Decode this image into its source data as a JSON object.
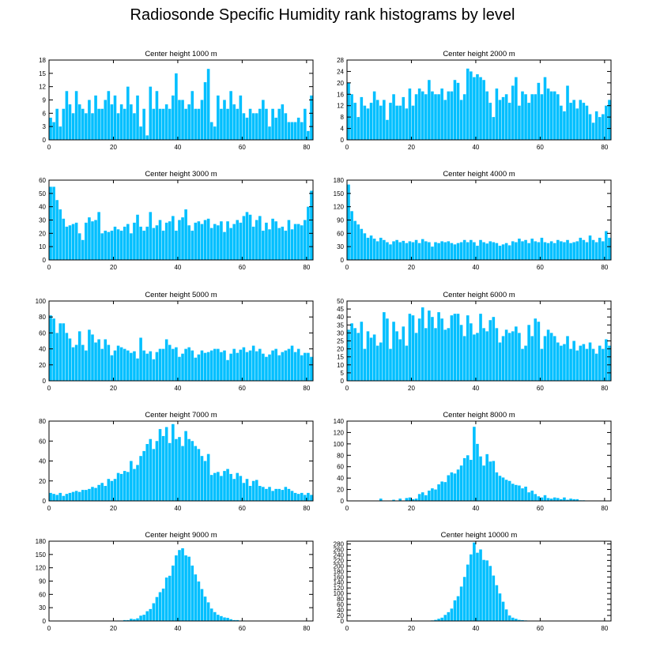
{
  "title": "Radiosonde Specific Humidity rank histograms by level",
  "bar_color": "#00bfff",
  "chart_data": [
    {
      "type": "bar",
      "title": "Center height 1000 m",
      "xlim": [
        0,
        82
      ],
      "xticks": [
        0,
        20,
        40,
        60,
        80
      ],
      "ylim": [
        0,
        18
      ],
      "yticks": [
        0,
        3,
        6,
        9,
        12,
        15,
        18
      ],
      "values": [
        5,
        4,
        7,
        3,
        7,
        11,
        8,
        6,
        11,
        8,
        7,
        6,
        9,
        6,
        10,
        7,
        7,
        9,
        11,
        8,
        10,
        6,
        8,
        7,
        12,
        8,
        6,
        10,
        3,
        7,
        1,
        12,
        7,
        11,
        7,
        7,
        8,
        7,
        10,
        15,
        9,
        9,
        7,
        8,
        11,
        7,
        7,
        9,
        13,
        16,
        4,
        3,
        10,
        7,
        9,
        7,
        11,
        8,
        7,
        10,
        6,
        5,
        7,
        6,
        6,
        7,
        9,
        7,
        3,
        7,
        5,
        7,
        8,
        6,
        4,
        4,
        4,
        5,
        4,
        7,
        2,
        10
      ]
    },
    {
      "type": "bar",
      "title": "Center height 2000 m",
      "xlim": [
        0,
        82
      ],
      "xticks": [
        0,
        20,
        40,
        60,
        80
      ],
      "ylim": [
        0,
        28
      ],
      "yticks": [
        0,
        4,
        8,
        12,
        16,
        20,
        24,
        28
      ],
      "values": [
        20,
        16,
        13,
        8,
        15,
        12,
        11,
        13,
        17,
        14,
        12,
        14,
        7,
        13,
        16,
        12,
        12,
        15,
        11,
        18,
        12,
        16,
        18,
        17,
        16,
        21,
        17,
        16,
        16,
        18,
        14,
        17,
        17,
        21,
        20,
        14,
        16,
        25,
        24,
        22,
        23,
        22,
        21,
        17,
        13,
        8,
        18,
        14,
        15,
        16,
        13,
        19,
        22,
        12,
        17,
        16,
        13,
        16,
        16,
        20,
        16,
        22,
        18,
        17,
        17,
        16,
        12,
        10,
        19,
        13,
        14,
        11,
        14,
        13,
        12,
        9,
        6,
        10,
        8,
        9,
        12,
        14
      ]
    },
    {
      "type": "bar",
      "title": "Center height 3000 m",
      "xlim": [
        0,
        82
      ],
      "xticks": [
        0,
        20,
        40,
        60,
        80
      ],
      "ylim": [
        0,
        60
      ],
      "yticks": [
        0,
        10,
        20,
        30,
        40,
        50,
        60
      ],
      "values": [
        55,
        55,
        45,
        38,
        31,
        25,
        26,
        27,
        28,
        20,
        15,
        28,
        32,
        29,
        30,
        36,
        20,
        22,
        21,
        22,
        25,
        23,
        22,
        25,
        27,
        20,
        28,
        34,
        25,
        22,
        25,
        36,
        24,
        26,
        30,
        22,
        28,
        29,
        33,
        22,
        30,
        32,
        38,
        26,
        22,
        28,
        29,
        27,
        30,
        31,
        24,
        27,
        26,
        29,
        21,
        29,
        24,
        27,
        30,
        28,
        33,
        36,
        34,
        25,
        30,
        33,
        22,
        28,
        23,
        31,
        29,
        24,
        25,
        22,
        30,
        23,
        27,
        27,
        26,
        30,
        40,
        52
      ]
    },
    {
      "type": "bar",
      "title": "Center height 4000 m",
      "xlim": [
        0,
        82
      ],
      "xticks": [
        0,
        20,
        40,
        60,
        80
      ],
      "ylim": [
        0,
        180
      ],
      "yticks": [
        0,
        30,
        60,
        90,
        120,
        150,
        180
      ],
      "values": [
        170,
        110,
        88,
        80,
        70,
        60,
        50,
        55,
        48,
        42,
        50,
        45,
        40,
        35,
        42,
        45,
        40,
        43,
        38,
        42,
        40,
        45,
        38,
        47,
        42,
        40,
        30,
        40,
        38,
        42,
        40,
        42,
        38,
        35,
        38,
        40,
        45,
        40,
        45,
        40,
        32,
        45,
        40,
        37,
        42,
        40,
        38,
        32,
        35,
        38,
        33,
        42,
        40,
        48,
        42,
        45,
        38,
        48,
        42,
        40,
        50,
        40,
        38,
        42,
        38,
        45,
        42,
        40,
        45,
        38,
        40,
        42,
        50,
        45,
        40,
        55,
        45,
        40,
        50,
        42,
        65,
        50
      ]
    },
    {
      "type": "bar",
      "title": "Center height 5000 m",
      "xlim": [
        0,
        82
      ],
      "xticks": [
        0,
        20,
        40,
        60,
        80
      ],
      "ylim": [
        0,
        100
      ],
      "yticks": [
        0,
        20,
        40,
        60,
        80,
        100
      ],
      "values": [
        82,
        78,
        60,
        72,
        72,
        60,
        53,
        42,
        45,
        62,
        45,
        38,
        64,
        58,
        48,
        52,
        40,
        52,
        45,
        32,
        38,
        44,
        42,
        40,
        38,
        35,
        37,
        28,
        54,
        38,
        34,
        37,
        27,
        36,
        40,
        40,
        52,
        45,
        40,
        42,
        30,
        34,
        40,
        42,
        38,
        29,
        33,
        38,
        35,
        36,
        38,
        40,
        40,
        36,
        38,
        26,
        34,
        40,
        35,
        39,
        42,
        36,
        38,
        44,
        37,
        40,
        34,
        30,
        33,
        38,
        40,
        32,
        36,
        38,
        40,
        44,
        36,
        40,
        32,
        35,
        35,
        30
      ]
    },
    {
      "type": "bar",
      "title": "Center height 6000 m",
      "xlim": [
        0,
        82
      ],
      "xticks": [
        0,
        20,
        40,
        60,
        80
      ],
      "ylim": [
        0,
        50
      ],
      "yticks": [
        0,
        5,
        10,
        15,
        20,
        25,
        30,
        35,
        40,
        45,
        50
      ],
      "values": [
        32,
        36,
        33,
        30,
        37,
        20,
        31,
        27,
        29,
        22,
        24,
        43,
        39,
        20,
        37,
        31,
        26,
        34,
        22,
        42,
        41,
        30,
        39,
        46,
        33,
        44,
        40,
        33,
        43,
        39,
        32,
        33,
        41,
        42,
        42,
        35,
        28,
        41,
        36,
        29,
        30,
        42,
        33,
        31,
        38,
        40,
        33,
        24,
        28,
        32,
        30,
        31,
        34,
        30,
        20,
        22,
        35,
        28,
        39,
        37,
        20,
        28,
        32,
        30,
        28,
        24,
        22,
        23,
        28,
        20,
        25,
        19,
        22,
        23,
        20,
        24,
        20,
        17,
        22,
        20,
        26,
        22
      ]
    },
    {
      "type": "bar",
      "title": "Center height 7000 m",
      "xlim": [
        0,
        82
      ],
      "xticks": [
        0,
        20,
        40,
        60,
        80
      ],
      "ylim": [
        0,
        80
      ],
      "yticks": [
        0,
        20,
        40,
        60,
        80
      ],
      "values": [
        8,
        7,
        6,
        8,
        5,
        7,
        8,
        9,
        10,
        9,
        11,
        11,
        12,
        14,
        13,
        16,
        18,
        15,
        22,
        20,
        22,
        28,
        27,
        30,
        29,
        40,
        32,
        36,
        45,
        50,
        57,
        62,
        52,
        60,
        72,
        65,
        74,
        58,
        77,
        62,
        64,
        55,
        70,
        62,
        60,
        55,
        52,
        45,
        40,
        47,
        26,
        28,
        29,
        25,
        30,
        32,
        27,
        22,
        28,
        25,
        18,
        22,
        15,
        20,
        21,
        15,
        14,
        12,
        14,
        10,
        12,
        12,
        11,
        14,
        12,
        10,
        8,
        7,
        8,
        6,
        8,
        6
      ]
    },
    {
      "type": "bar",
      "title": "Center height 8000 m",
      "xlim": [
        0,
        82
      ],
      "xticks": [
        0,
        20,
        40,
        60,
        80
      ],
      "ylim": [
        0,
        140
      ],
      "yticks": [
        0,
        20,
        40,
        60,
        80,
        100,
        120,
        140
      ],
      "values": [
        0,
        0,
        0,
        0,
        0,
        0,
        0,
        0,
        0,
        0,
        4,
        0,
        0,
        0,
        2,
        0,
        4,
        0,
        5,
        6,
        3,
        4,
        12,
        15,
        10,
        18,
        22,
        20,
        29,
        34,
        33,
        45,
        50,
        48,
        55,
        62,
        75,
        80,
        72,
        130,
        100,
        78,
        62,
        82,
        69,
        70,
        50,
        44,
        41,
        37,
        35,
        30,
        28,
        27,
        22,
        25,
        15,
        18,
        12,
        8,
        6,
        10,
        5,
        4,
        6,
        5,
        3,
        6,
        2,
        4,
        3,
        3,
        1,
        1,
        0,
        0,
        0,
        0,
        0,
        0,
        0,
        0
      ]
    },
    {
      "type": "bar",
      "title": "Center height 9000 m",
      "xlim": [
        0,
        82
      ],
      "xticks": [
        0,
        20,
        40,
        60,
        80
      ],
      "ylim": [
        0,
        180
      ],
      "yticks": [
        0,
        30,
        60,
        90,
        120,
        150,
        180
      ],
      "values": [
        0,
        0,
        0,
        0,
        0,
        0,
        0,
        0,
        0,
        0,
        0,
        0,
        0,
        0,
        0,
        0,
        0,
        0,
        0,
        0,
        0,
        1,
        1,
        2,
        2,
        5,
        4,
        6,
        12,
        14,
        22,
        27,
        40,
        54,
        65,
        73,
        98,
        102,
        125,
        148,
        160,
        164,
        148,
        145,
        125,
        105,
        89,
        72,
        55,
        42,
        28,
        20,
        14,
        11,
        8,
        7,
        4,
        2,
        2,
        1,
        1,
        0,
        0,
        0,
        0,
        0,
        0,
        0,
        0,
        0,
        0,
        0,
        0,
        0,
        0,
        0,
        0,
        0,
        0,
        0,
        0,
        0
      ]
    },
    {
      "type": "bar",
      "title": "Center height 10000 m",
      "xlim": [
        0,
        82
      ],
      "xticks": [
        0,
        20,
        40,
        60,
        80
      ],
      "ylim": [
        0,
        290
      ],
      "yticks": [
        0,
        20,
        40,
        60,
        80,
        100,
        120,
        140,
        160,
        180,
        200,
        220,
        240,
        260,
        280
      ],
      "values": [
        0,
        0,
        0,
        0,
        0,
        0,
        0,
        0,
        0,
        0,
        0,
        0,
        0,
        0,
        0,
        0,
        0,
        0,
        0,
        0,
        0,
        0,
        0,
        0,
        0,
        1,
        2,
        4,
        8,
        12,
        22,
        32,
        45,
        75,
        90,
        125,
        160,
        205,
        242,
        285,
        248,
        260,
        222,
        220,
        200,
        165,
        130,
        100,
        70,
        42,
        20,
        12,
        8,
        4,
        3,
        2,
        1,
        1,
        0,
        0,
        0,
        0,
        0,
        0,
        0,
        0,
        0,
        0,
        0,
        0,
        0,
        0,
        0,
        0,
        0,
        0,
        0,
        0,
        0,
        0,
        0,
        0
      ]
    }
  ]
}
